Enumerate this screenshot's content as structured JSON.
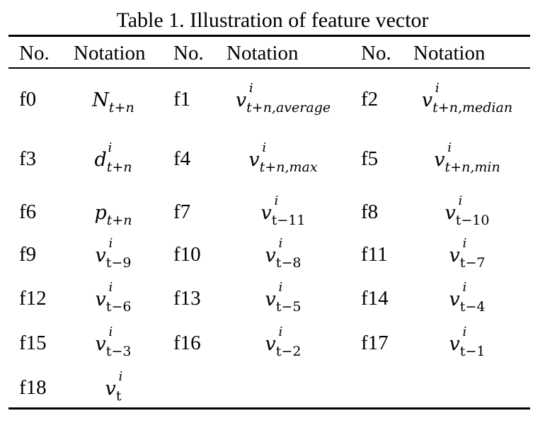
{
  "caption": "Table 1. Illustration of feature vector",
  "headers": [
    "No.",
    "Notation",
    "No.",
    "Notation",
    "No.",
    "Notation"
  ],
  "rows": [
    [
      {
        "no": "f0",
        "base": "N",
        "sup": "",
        "sub": "t+n",
        "sub_upright": false
      },
      {
        "no": "f1",
        "base": "v",
        "sup": "i",
        "sub": "t+n,average",
        "sub_upright": false
      },
      {
        "no": "f2",
        "base": "v",
        "sup": "i",
        "sub": "t+n,median",
        "sub_upright": false
      }
    ],
    [
      {
        "no": "f3",
        "base": "d",
        "sup": "i",
        "sub": "t+n",
        "sub_upright": false
      },
      {
        "no": "f4",
        "base": "v",
        "sup": "i",
        "sub": "t+n,max",
        "sub_upright": false
      },
      {
        "no": "f5",
        "base": "v",
        "sup": "i",
        "sub": "t+n,min",
        "sub_upright": false
      }
    ],
    [
      {
        "no": "f6",
        "base": "p",
        "sup": "",
        "sub": "t+n",
        "sub_upright": false
      },
      {
        "no": "f7",
        "base": "v",
        "sup": "i",
        "sub": "t−11",
        "sub_upright": true
      },
      {
        "no": "f8",
        "base": "v",
        "sup": "i",
        "sub": "t−10",
        "sub_upright": true
      }
    ],
    [
      {
        "no": "f9",
        "base": "v",
        "sup": "i",
        "sub": "t−9",
        "sub_upright": true
      },
      {
        "no": "f10",
        "base": "v",
        "sup": "i",
        "sub": "t−8",
        "sub_upright": true
      },
      {
        "no": "f11",
        "base": "v",
        "sup": "i",
        "sub": "t−7",
        "sub_upright": true
      }
    ],
    [
      {
        "no": "f12",
        "base": "v",
        "sup": "i",
        "sub": "t−6",
        "sub_upright": true
      },
      {
        "no": "f13",
        "base": "v",
        "sup": "i",
        "sub": "t−5",
        "sub_upright": true
      },
      {
        "no": "f14",
        "base": "v",
        "sup": "i",
        "sub": "t−4",
        "sub_upright": true
      }
    ],
    [
      {
        "no": "f15",
        "base": "v",
        "sup": "i",
        "sub": "t−3",
        "sub_upright": true
      },
      {
        "no": "f16",
        "base": "v",
        "sup": "i",
        "sub": "t−2",
        "sub_upright": true
      },
      {
        "no": "f17",
        "base": "v",
        "sup": "i",
        "sub": "t−1",
        "sub_upright": true
      }
    ],
    [
      {
        "no": "f18",
        "base": "v",
        "sup": "i",
        "sub": "t",
        "sub_upright": true
      }
    ]
  ]
}
